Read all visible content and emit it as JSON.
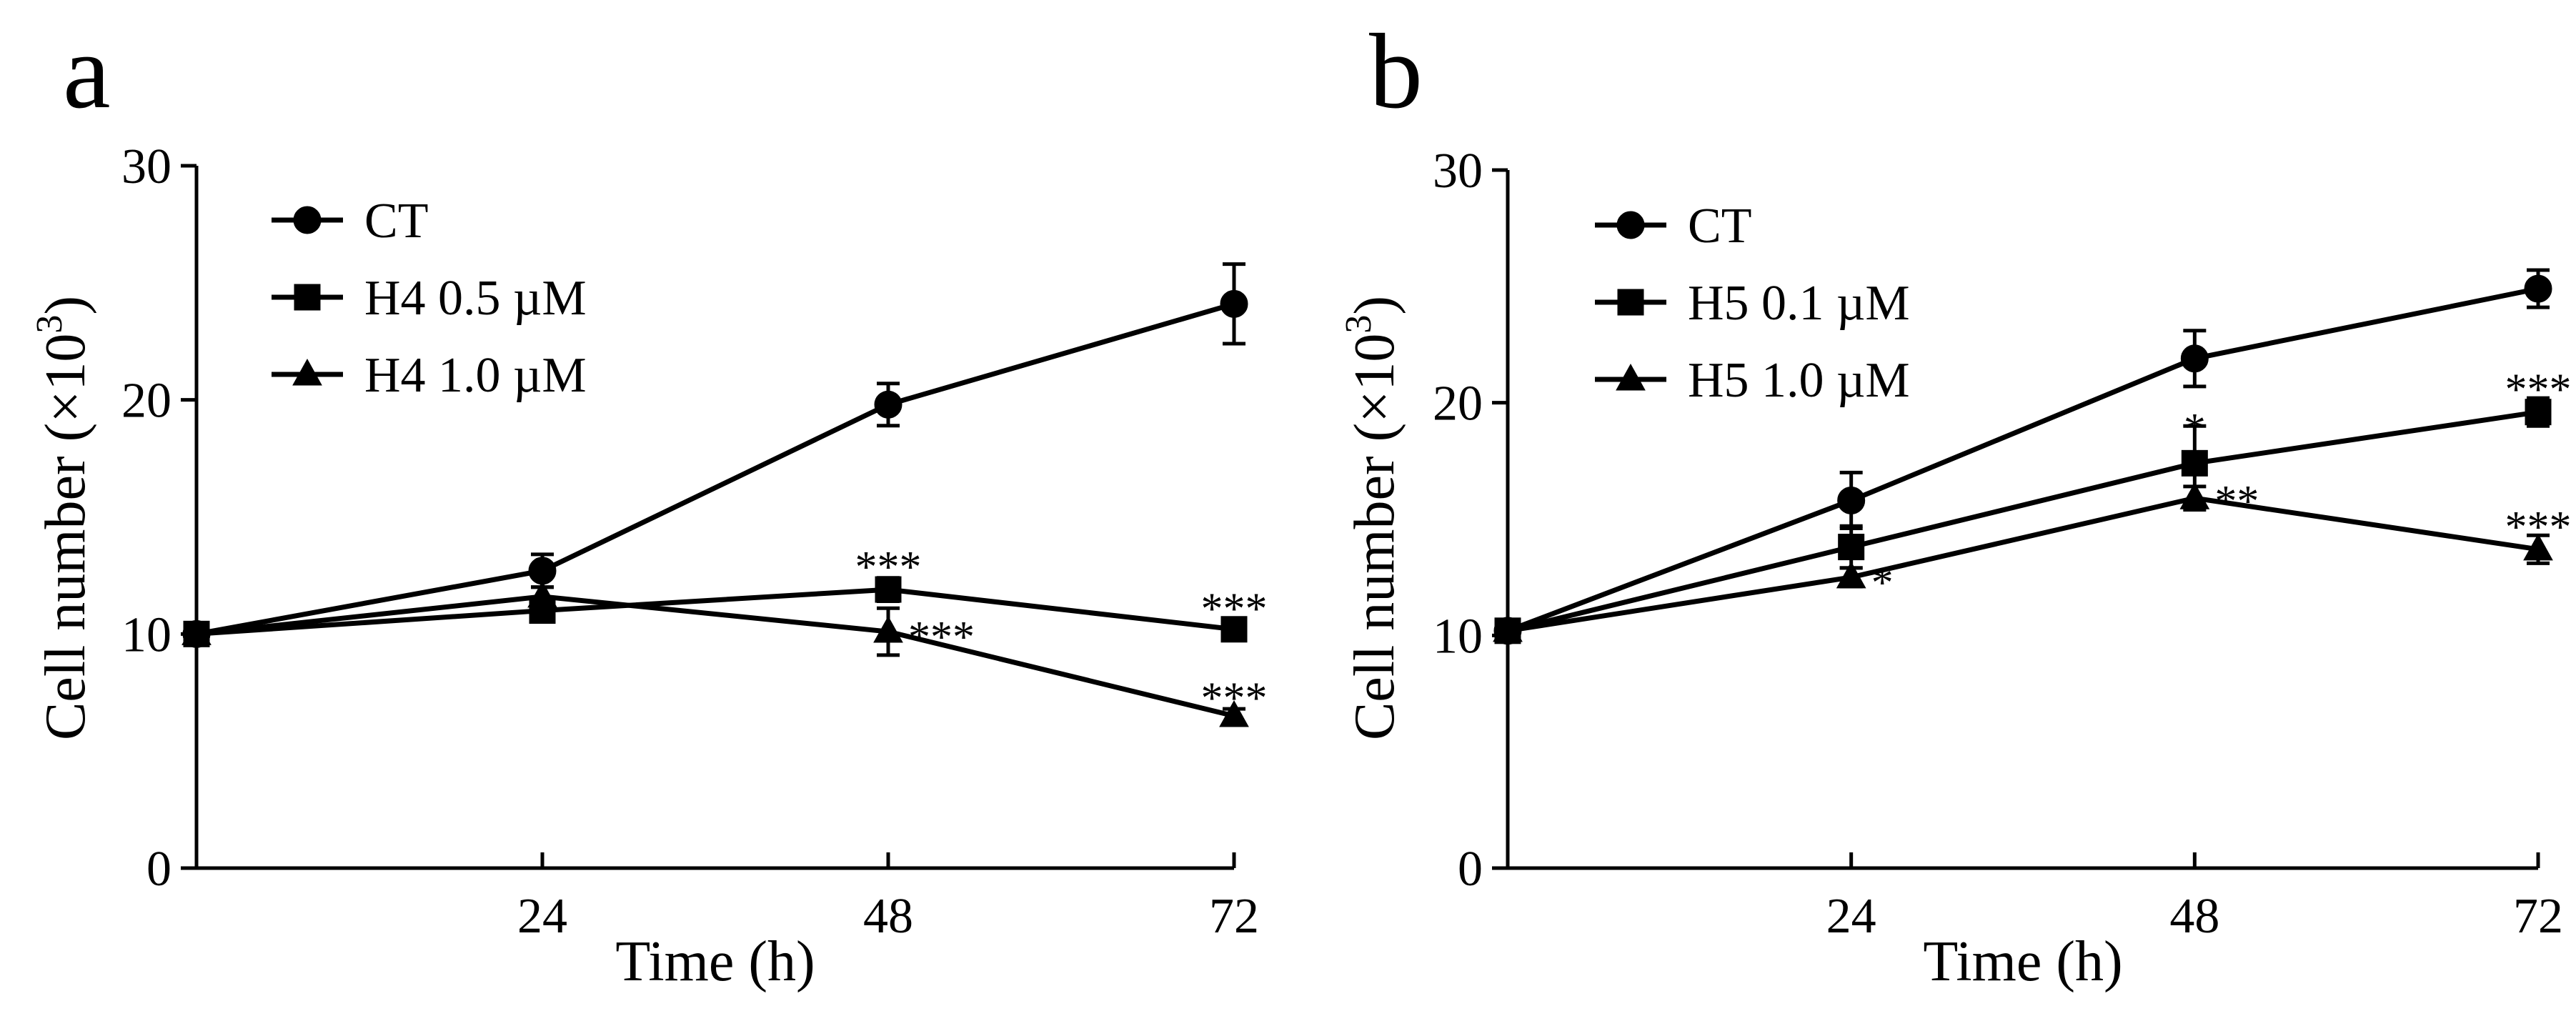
{
  "chart_data": [
    {
      "type": "line",
      "panel_label": "a",
      "xlabel": "Time (h)",
      "ylabel": "Cell number (×10",
      "ylabel_sup": "3",
      "ylabel_close": ")",
      "x": [
        0,
        24,
        48,
        72
      ],
      "xticks": [
        24,
        48,
        72
      ],
      "xlim": [
        0,
        72
      ],
      "ylim": [
        0,
        30
      ],
      "yticks": [
        0,
        10,
        20,
        30
      ],
      "legend_position": "top-left",
      "series": [
        {
          "name": "CT",
          "marker": "circle",
          "values": [
            10.0,
            12.7,
            19.8,
            24.1
          ],
          "errors": [
            0,
            0.7,
            0.9,
            1.7
          ]
        },
        {
          "name": "H4 0.5 µM",
          "marker": "square",
          "values": [
            10.0,
            11.0,
            11.9,
            10.2
          ],
          "errors": [
            0,
            0.4,
            0.5,
            0.3
          ]
        },
        {
          "name": "H4 1.0 µM",
          "marker": "triangle",
          "values": [
            10.0,
            11.6,
            10.1,
            6.5
          ],
          "errors": [
            0,
            0.4,
            1.0,
            0.3
          ]
        }
      ],
      "annotations": [
        {
          "text": "***",
          "x": 48,
          "y": 13.1,
          "anchor": "middle"
        },
        {
          "text": "***",
          "x": 48,
          "y": 10.1,
          "anchor": "start"
        },
        {
          "text": "***",
          "x": 72,
          "y": 11.3,
          "anchor": "middle"
        },
        {
          "text": "***",
          "x": 72,
          "y": 7.5,
          "anchor": "middle"
        }
      ]
    },
    {
      "type": "line",
      "panel_label": "b",
      "xlabel": "Time (h)",
      "ylabel": "Cell number (×10",
      "ylabel_sup": "3",
      "ylabel_close": ")",
      "x": [
        0,
        24,
        48,
        72
      ],
      "xticks": [
        24,
        48,
        72
      ],
      "xlim": [
        0,
        72
      ],
      "ylim": [
        0,
        30
      ],
      "yticks": [
        0,
        10,
        20,
        30
      ],
      "legend_position": "top-left",
      "series": [
        {
          "name": "CT",
          "marker": "circle",
          "values": [
            10.2,
            15.8,
            21.9,
            24.9
          ],
          "errors": [
            0,
            1.2,
            1.2,
            0.8
          ]
        },
        {
          "name": "H5 0.1 µM",
          "marker": "square",
          "values": [
            10.2,
            13.8,
            17.4,
            19.6
          ],
          "errors": [
            0,
            0.9,
            1.6,
            0.6
          ]
        },
        {
          "name": "H5 1.0 µM",
          "marker": "triangle",
          "values": [
            10.2,
            12.5,
            15.9,
            13.7
          ],
          "errors": [
            0,
            0.4,
            0.5,
            0.6
          ]
        }
      ],
      "annotations": [
        {
          "text": "*",
          "x": 24,
          "y": 12.5,
          "anchor": "start"
        },
        {
          "text": "*",
          "x": 48,
          "y": 19.1,
          "anchor": "middle"
        },
        {
          "text": "**",
          "x": 48,
          "y": 16.0,
          "anchor": "start"
        },
        {
          "text": "***",
          "x": 72,
          "y": 20.8,
          "anchor": "middle"
        },
        {
          "text": "***",
          "x": 72,
          "y": 14.9,
          "anchor": "middle"
        }
      ]
    }
  ]
}
